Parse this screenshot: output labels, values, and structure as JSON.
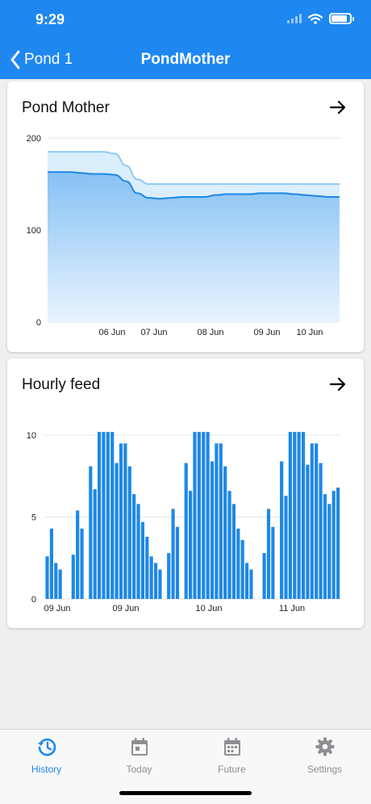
{
  "status_bar": {
    "time": "9:29"
  },
  "nav": {
    "back_label": "Pond 1",
    "title": "PondMother"
  },
  "card1": {
    "title": "Pond Mother",
    "chart_data": {
      "type": "area",
      "y_ticks": [
        0,
        100,
        200
      ],
      "ylim": [
        0,
        200
      ],
      "x_ticks": [
        "06 Jun",
        "07 Jun",
        "08 Jun",
        "09 Jun",
        "10 Jun"
      ],
      "series": [
        {
          "values": [
            185,
            185,
            185,
            185,
            185,
            185,
            183,
            170,
            155,
            150,
            150,
            150,
            150,
            150,
            150,
            150,
            150,
            150,
            150,
            150,
            150,
            150,
            150,
            150,
            150,
            150,
            150
          ],
          "color": "#8fcaf6"
        },
        {
          "values": [
            163,
            163,
            163,
            162,
            161,
            161,
            160,
            153,
            140,
            135,
            134,
            135,
            136,
            136,
            136,
            138,
            139,
            139,
            139,
            140,
            140,
            140,
            139,
            138,
            137,
            136,
            136
          ],
          "color": "#1e88e5"
        }
      ]
    }
  },
  "card2": {
    "title": "Hourly feed",
    "chart_data": {
      "type": "bar",
      "y_ticks": [
        0,
        5,
        10
      ],
      "ylim": [
        0,
        10.5
      ],
      "x_ticks": [
        "09 Jun",
        "09 Jun",
        "10 Jun",
        "11 Jun"
      ],
      "values": [
        2.6,
        4.3,
        2.2,
        1.8,
        null,
        null,
        2.7,
        5.4,
        4.3,
        null,
        8.1,
        6.7,
        10.2,
        10.2,
        10.2,
        10.2,
        8.3,
        9.5,
        9.5,
        8.1,
        6.4,
        5.8,
        4.7,
        3.8,
        2.6,
        2.2,
        1.8,
        null,
        2.8,
        5.5,
        4.4,
        null,
        8.3,
        6.6,
        10.2,
        10.2,
        10.2,
        10.2,
        8.4,
        9.5,
        9.5,
        8.1,
        6.6,
        5.8,
        4.3,
        3.6,
        2.2,
        1.8,
        null,
        null,
        2.8,
        5.5,
        4.4,
        null,
        8.4,
        6.3,
        10.2,
        10.2,
        10.2,
        10.2,
        8.2,
        9.5,
        9.5,
        8.3,
        6.4,
        5.8,
        6.6,
        6.8
      ],
      "color": "#1e88e5"
    }
  },
  "tabs": [
    {
      "label": "History",
      "icon": "history-icon",
      "active": true
    },
    {
      "label": "Today",
      "icon": "calendar-today-icon",
      "active": false
    },
    {
      "label": "Future",
      "icon": "calendar-future-icon",
      "active": false
    },
    {
      "label": "Settings",
      "icon": "gear-icon",
      "active": false
    }
  ]
}
